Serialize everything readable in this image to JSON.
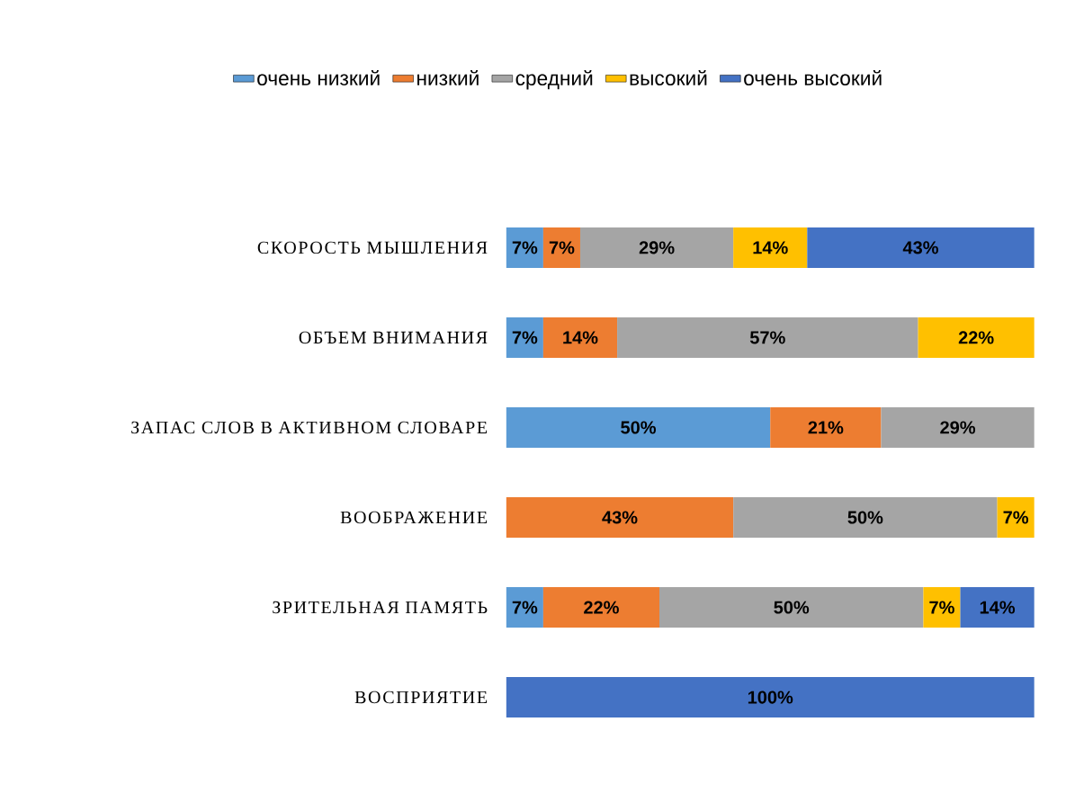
{
  "chart_data": {
    "type": "bar",
    "orientation": "horizontal",
    "stacked": true,
    "legend": "top",
    "categories": [
      "СКОРОСТЬ МЫШЛЕНИЯ",
      "ОБЪЕМ ВНИМАНИЯ",
      "ЗАПАС СЛОВ В АКТИВНОМ СЛОВАРЕ",
      "ВООБРАЖЕНИЕ",
      "ЗРИТЕЛЬНАЯ ПАМЯТЬ",
      "ВОСПРИЯТИЕ"
    ],
    "series": [
      {
        "name": "очень низкий",
        "color": "#5b9bd5",
        "values": [
          7,
          7,
          50,
          null,
          7,
          null
        ],
        "value_labels": [
          "7%",
          "7%",
          "50%",
          null,
          "7%",
          null
        ]
      },
      {
        "name": "низкий",
        "color": "#ed7d31",
        "values": [
          7,
          14,
          21,
          43,
          22,
          null
        ],
        "value_labels": [
          "7%",
          "14%",
          "21%",
          "43%",
          "22%",
          null
        ]
      },
      {
        "name": "средний",
        "color": "#a5a5a5",
        "values": [
          29,
          57,
          29,
          50,
          50,
          null
        ],
        "value_labels": [
          "29%",
          "57%",
          "29%",
          "50%",
          "50%",
          null
        ]
      },
      {
        "name": "высокий",
        "color": "#ffc000",
        "values": [
          14,
          22,
          null,
          7,
          7,
          null
        ],
        "value_labels": [
          "14%",
          "22%",
          null,
          "7%",
          "7%",
          null
        ]
      },
      {
        "name": "очень высокий",
        "color": "#4472c4",
        "values": [
          43,
          null,
          null,
          null,
          14,
          100
        ],
        "value_labels": [
          "43%",
          null,
          null,
          null,
          "14%",
          "100%"
        ]
      }
    ]
  }
}
